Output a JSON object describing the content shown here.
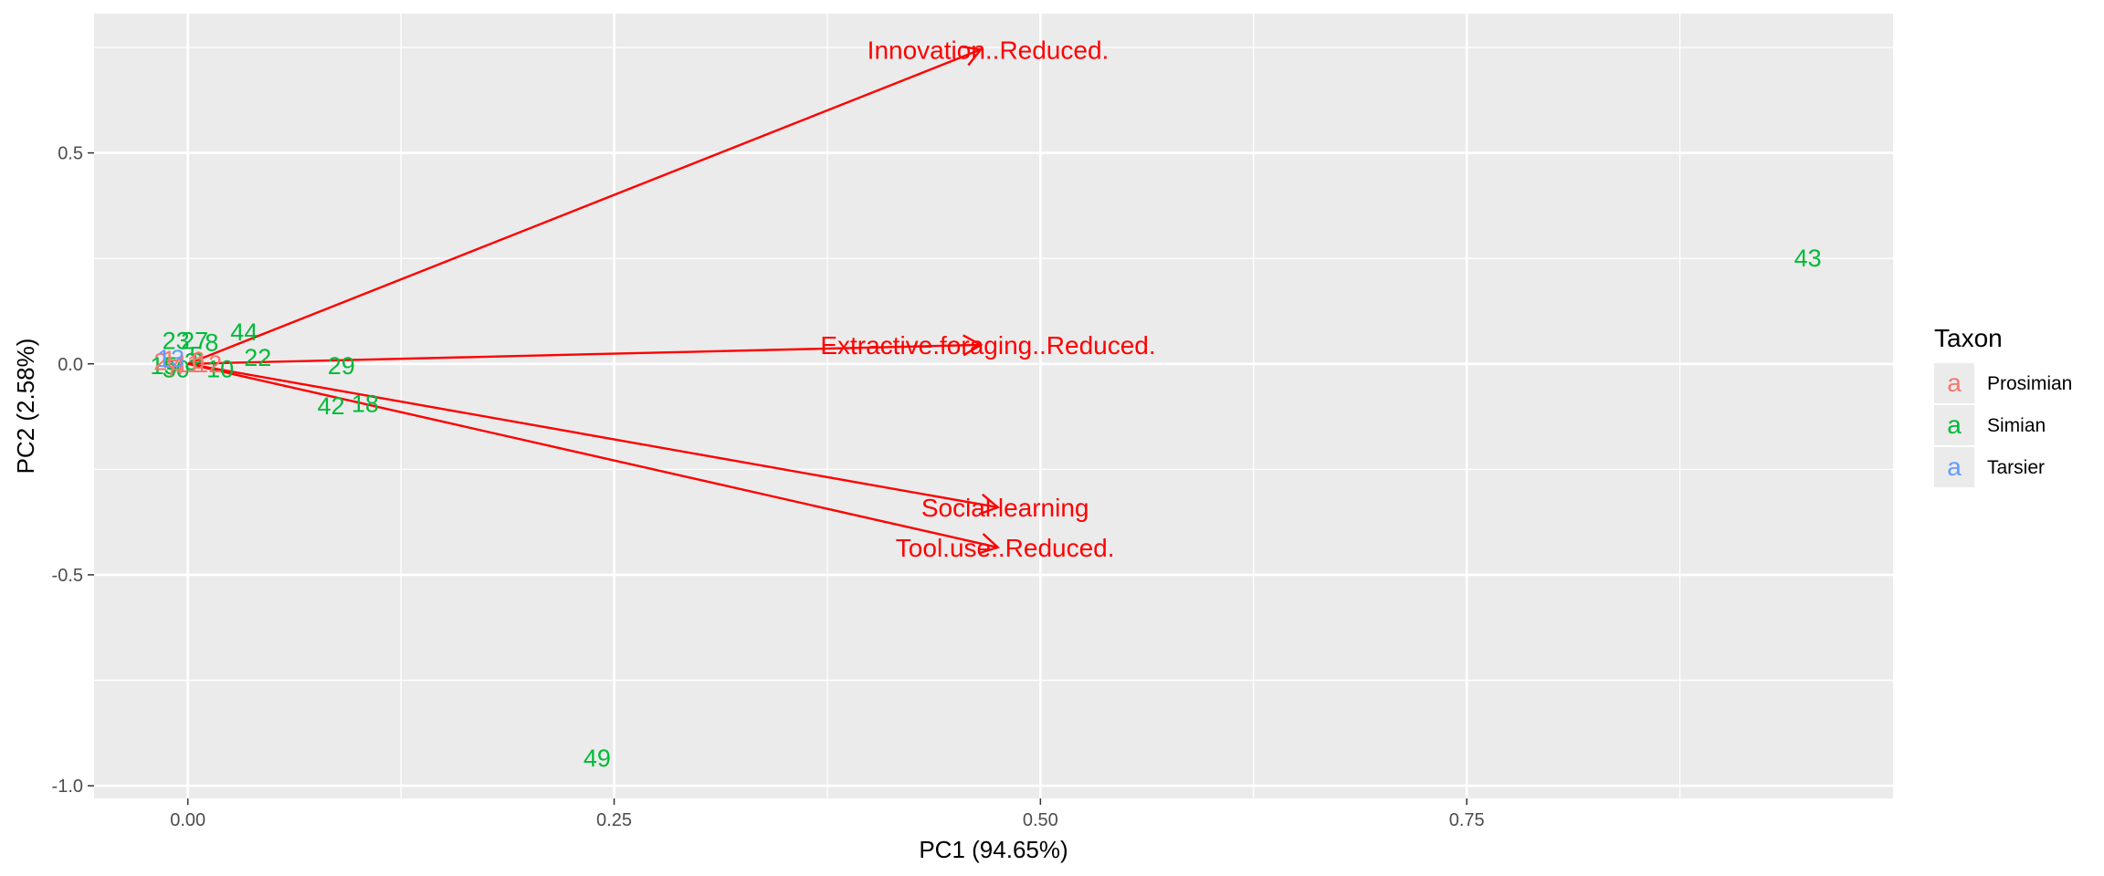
{
  "chart_data": {
    "type": "scatter",
    "subtype": "pca-biplot",
    "title": "",
    "xlabel": "PC1 (94.65%)",
    "ylabel": "PC2 (2.58%)",
    "xlim": [
      -0.055,
      1.0
    ],
    "ylim": [
      -1.03,
      0.83
    ],
    "x_ticks": [
      0.0,
      0.25,
      0.5,
      0.75
    ],
    "x_tick_labels": [
      "0.00",
      "0.25",
      "0.50",
      "0.75"
    ],
    "y_ticks": [
      -1.0,
      -0.5,
      0.0,
      0.5
    ],
    "y_tick_labels": [
      "-1.0",
      "-0.5",
      "0.0",
      "0.5"
    ],
    "grid": true,
    "panel_background": "#ebebeb",
    "grid_color": "#ffffff",
    "legend": {
      "title": "Taxon",
      "position": "right",
      "glyph": "a",
      "entries": [
        {
          "name": "Prosimian",
          "color": "#f8766d"
        },
        {
          "name": "Simian",
          "color": "#00ba38"
        },
        {
          "name": "Tarsier",
          "color": "#619cff"
        }
      ]
    },
    "points": [
      {
        "label": "43",
        "x": 0.95,
        "y": 0.25,
        "taxon": "Simian"
      },
      {
        "label": "49",
        "x": 0.24,
        "y": -0.935,
        "taxon": "Simian"
      },
      {
        "label": "44",
        "x": 0.033,
        "y": 0.075,
        "taxon": "Simian"
      },
      {
        "label": "22",
        "x": 0.041,
        "y": 0.015,
        "taxon": "Simian"
      },
      {
        "label": "29",
        "x": 0.09,
        "y": -0.005,
        "taxon": "Simian"
      },
      {
        "label": "42",
        "x": 0.084,
        "y": -0.1,
        "taxon": "Simian"
      },
      {
        "label": "18",
        "x": 0.104,
        "y": -0.095,
        "taxon": "Simian"
      },
      {
        "label": "23",
        "x": -0.007,
        "y": 0.055,
        "taxon": "Simian"
      },
      {
        "label": "27",
        "x": 0.004,
        "y": 0.055,
        "taxon": "Simian"
      },
      {
        "label": "8",
        "x": 0.014,
        "y": 0.05,
        "taxon": "Simian"
      },
      {
        "label": "3",
        "x": 0.002,
        "y": 0.005,
        "taxon": "Simian"
      },
      {
        "label": "15",
        "x": -0.014,
        "y": -0.005,
        "taxon": "Simian"
      },
      {
        "label": "10",
        "x": 0.019,
        "y": -0.012,
        "taxon": "Simian"
      },
      {
        "label": "30",
        "x": -0.007,
        "y": -0.012,
        "taxon": "Simian"
      },
      {
        "label": "5",
        "x": 0.005,
        "y": 0.02,
        "taxon": "Simian"
      },
      {
        "label": "2",
        "x": -0.016,
        "y": 0.005,
        "taxon": "Prosimian"
      },
      {
        "label": "1",
        "x": -0.011,
        "y": 0.01,
        "taxon": "Prosimian"
      },
      {
        "label": "4",
        "x": -0.006,
        "y": -0.005,
        "taxon": "Prosimian"
      },
      {
        "label": "6",
        "x": 0.006,
        "y": 0.008,
        "taxon": "Prosimian"
      },
      {
        "label": "7",
        "x": -0.009,
        "y": -0.01,
        "taxon": "Prosimian"
      },
      {
        "label": "11",
        "x": 0.0,
        "y": 0.0,
        "taxon": "Prosimian"
      },
      {
        "label": "12",
        "x": 0.012,
        "y": 0.0,
        "taxon": "Prosimian"
      },
      {
        "label": "13",
        "x": -0.01,
        "y": 0.012,
        "taxon": "Tarsier"
      }
    ],
    "arrows": [
      {
        "label": "Innovation..Reduced.",
        "x": 0.465,
        "y": 0.745,
        "color": "#ff0000"
      },
      {
        "label": "Extractive.foraging..Reduced.",
        "x": 0.465,
        "y": 0.045,
        "color": "#ff0000"
      },
      {
        "label": "Social.learning",
        "x": 0.475,
        "y": -0.34,
        "color": "#ff0000"
      },
      {
        "label": "Tool.use..Reduced.",
        "x": 0.475,
        "y": -0.435,
        "color": "#ff0000"
      }
    ]
  }
}
